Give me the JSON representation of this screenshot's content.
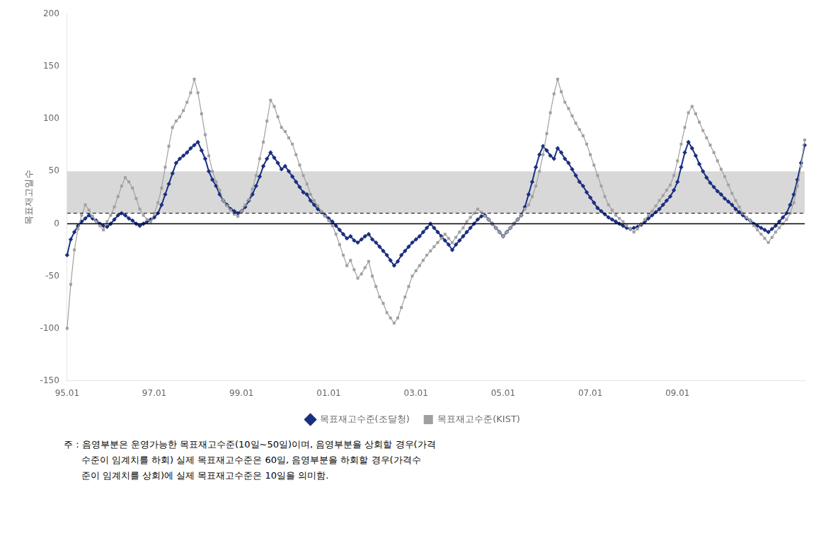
{
  "chart_data": {
    "type": "line",
    "ylabel": "목표재고일수",
    "annotation": "주 : 음영부분은 운영가능한 목표재고수준(10일~50일)이며, 음영부분을 상회할 경우(가격\n      수준이 임계치를 하회) 실제 목표재고수준은 60일, 음영부분을 하회할 경우(가격수\n      준이 임계치를 상회)에 실제 목표재고수준은 10일을 의미함.",
    "categories": [
      "95.01",
      null,
      null,
      null,
      null,
      null,
      null,
      null,
      null,
      null,
      null,
      null,
      null,
      null,
      null,
      null,
      null,
      null,
      null,
      null,
      null,
      null,
      null,
      null,
      "97.01",
      null,
      null,
      null,
      null,
      null,
      null,
      null,
      null,
      null,
      null,
      null,
      null,
      null,
      null,
      null,
      null,
      null,
      null,
      null,
      null,
      null,
      null,
      null,
      "99.01",
      null,
      null,
      null,
      null,
      null,
      null,
      null,
      null,
      null,
      null,
      null,
      null,
      null,
      null,
      null,
      null,
      null,
      null,
      null,
      null,
      null,
      null,
      null,
      "01.01",
      null,
      null,
      null,
      null,
      null,
      null,
      null,
      null,
      null,
      null,
      null,
      null,
      null,
      null,
      null,
      null,
      null,
      null,
      null,
      null,
      null,
      null,
      null,
      "03.01",
      null,
      null,
      null,
      null,
      null,
      null,
      null,
      null,
      null,
      null,
      null,
      null,
      null,
      null,
      null,
      null,
      null,
      null,
      null,
      null,
      null,
      null,
      null,
      "05.01",
      null,
      null,
      null,
      null,
      null,
      null,
      null,
      null,
      null,
      null,
      null,
      null,
      null,
      null,
      null,
      null,
      null,
      null,
      null,
      null,
      null,
      null,
      null,
      "07.01",
      null,
      null,
      null,
      null,
      null,
      null,
      null,
      null,
      null,
      null,
      null,
      null,
      null,
      null,
      null,
      null,
      null,
      null,
      null,
      null,
      null,
      null,
      null,
      "09.01",
      null,
      null,
      null,
      null,
      null,
      null,
      null,
      null,
      null,
      null,
      null,
      null,
      null,
      null,
      null,
      null,
      null,
      null,
      null,
      null,
      null,
      null,
      null,
      null,
      null,
      null,
      null,
      null,
      null,
      null,
      null,
      null,
      null,
      null,
      null
    ],
    "series": [
      {
        "name": "목표재고수준(조달청)",
        "color": "#1B2F80",
        "marker": "diamond",
        "line_style": "solid",
        "values": [
          -30,
          -15,
          -8,
          -2,
          2,
          5,
          8,
          5,
          3,
          0,
          -2,
          -3,
          0,
          4,
          8,
          10,
          8,
          5,
          3,
          0,
          -2,
          0,
          2,
          4,
          6,
          10,
          18,
          28,
          38,
          48,
          58,
          62,
          65,
          68,
          72,
          75,
          78,
          70,
          62,
          50,
          42,
          36,
          28,
          22,
          18,
          14,
          12,
          10,
          12,
          16,
          22,
          28,
          36,
          45,
          55,
          62,
          68,
          63,
          58,
          52,
          55,
          50,
          45,
          40,
          35,
          30,
          28,
          22,
          18,
          14,
          11,
          8,
          5,
          2,
          -2,
          -6,
          -10,
          -14,
          -12,
          -16,
          -18,
          -15,
          -12,
          -10,
          -15,
          -18,
          -22,
          -26,
          -30,
          -35,
          -40,
          -36,
          -30,
          -26,
          -22,
          -18,
          -15,
          -12,
          -8,
          -4,
          0,
          -4,
          -8,
          -12,
          -16,
          -20,
          -25,
          -20,
          -16,
          -12,
          -8,
          -4,
          0,
          4,
          7,
          8,
          4,
          0,
          -4,
          -8,
          -12,
          -8,
          -4,
          0,
          4,
          8,
          16,
          28,
          40,
          54,
          66,
          74,
          70,
          65,
          62,
          72,
          68,
          62,
          58,
          52,
          46,
          40,
          36,
          30,
          25,
          20,
          15,
          12,
          9,
          6,
          4,
          2,
          0,
          -2,
          -4,
          -5,
          -4,
          -3,
          -1,
          2,
          5,
          8,
          11,
          14,
          18,
          22,
          26,
          32,
          40,
          54,
          68,
          78,
          72,
          65,
          57,
          50,
          44,
          39,
          35,
          31,
          28,
          24,
          21,
          18,
          14,
          11,
          8,
          5,
          3,
          0,
          -2,
          -4,
          -6,
          -8,
          -5,
          -2,
          2,
          6,
          10,
          18,
          28,
          42,
          58,
          75
        ]
      },
      {
        "name": "목표재고수준(KIST)",
        "color": "#A0A0A0",
        "marker": "square",
        "line_style": "solid",
        "values": [
          -100,
          -58,
          -25,
          -5,
          8,
          18,
          13,
          7,
          2,
          -2,
          -6,
          2,
          8,
          16,
          26,
          36,
          44,
          40,
          34,
          24,
          14,
          8,
          4,
          2,
          10,
          20,
          34,
          54,
          74,
          92,
          98,
          102,
          108,
          116,
          125,
          138,
          125,
          105,
          85,
          65,
          50,
          40,
          32,
          22,
          17,
          13,
          9,
          7,
          12,
          18,
          23,
          33,
          46,
          62,
          78,
          98,
          118,
          112,
          102,
          92,
          88,
          82,
          76,
          66,
          56,
          46,
          38,
          28,
          22,
          17,
          12,
          7,
          3,
          -2,
          -10,
          -20,
          -30,
          -40,
          -35,
          -44,
          -52,
          -48,
          -42,
          -36,
          -50,
          -60,
          -70,
          -76,
          -85,
          -90,
          -95,
          -90,
          -80,
          -70,
          -60,
          -50,
          -45,
          -40,
          -35,
          -30,
          -26,
          -22,
          -18,
          -14,
          -10,
          -14,
          -18,
          -13,
          -8,
          -4,
          2,
          6,
          10,
          14,
          11,
          7,
          4,
          0,
          -4,
          -8,
          -12,
          -8,
          -4,
          0,
          4,
          8,
          14,
          18,
          26,
          36,
          50,
          66,
          86,
          106,
          124,
          138,
          126,
          116,
          110,
          103,
          96,
          90,
          84,
          76,
          66,
          56,
          46,
          36,
          26,
          18,
          13,
          8,
          5,
          2,
          -2,
          -5,
          -8,
          -5,
          0,
          4,
          8,
          12,
          17,
          22,
          27,
          32,
          37,
          46,
          60,
          76,
          92,
          106,
          112,
          105,
          97,
          89,
          82,
          75,
          68,
          60,
          52,
          45,
          37,
          29,
          22,
          16,
          10,
          6,
          3,
          -2,
          -6,
          -10,
          -14,
          -18,
          -13,
          -8,
          -4,
          0,
          4,
          10,
          20,
          36,
          55,
          80
        ]
      }
    ],
    "band": {
      "range": [
        10,
        50
      ],
      "color": "#D8D8D8"
    },
    "reference_lines": [
      {
        "y": 10,
        "color": "#000000",
        "line_style": "dashed"
      },
      {
        "y": 0,
        "color": "#000000",
        "line_style": "solid"
      }
    ],
    "ylim": [
      -150,
      200
    ],
    "yticks": [
      -150,
      -100,
      -50,
      0,
      50,
      100,
      150,
      200
    ],
    "grid": false,
    "legend": "bottom"
  }
}
